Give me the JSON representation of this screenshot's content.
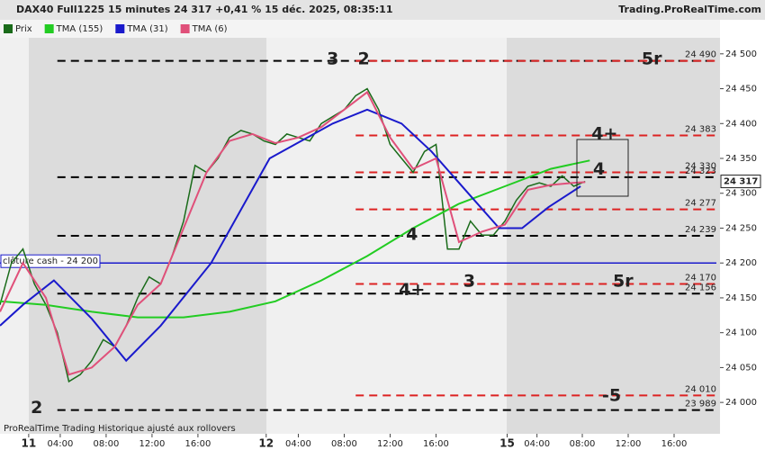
{
  "header": {
    "title": "DAX40 Full1225 15 minutes 24 317 +0,41 % 15 déc. 2025, 08:35:11",
    "source": "Trading.ProRealTime.com",
    "footer": "ProRealTime Trading  Historique ajusté aux rollovers"
  },
  "chart_data": {
    "type": "line",
    "xlim": [
      0,
      62.75
    ],
    "ylim": [
      23955,
      24523
    ],
    "xticks": [
      {
        "value": 2.5,
        "label": "11"
      },
      {
        "value": 5.25,
        "label": "04:00"
      },
      {
        "value": 9.25,
        "label": "08:00"
      },
      {
        "value": 13.25,
        "label": "12:00"
      },
      {
        "value": 17.25,
        "label": "16:00"
      },
      {
        "value": 23.2,
        "label": "12"
      },
      {
        "value": 26,
        "label": "04:00"
      },
      {
        "value": 30,
        "label": "08:00"
      },
      {
        "value": 34,
        "label": "12:00"
      },
      {
        "value": 38,
        "label": "16:00"
      },
      {
        "value": 44.2,
        "label": "15"
      },
      {
        "value": 46.8,
        "label": "04:00"
      },
      {
        "value": 50.75,
        "label": "08:00"
      },
      {
        "value": 54.75,
        "label": "12:00"
      },
      {
        "value": 58.75,
        "label": "16:00"
      }
    ],
    "yticks": [
      {
        "value": 24000,
        "label": "24 000"
      },
      {
        "value": 24050,
        "label": "24 050"
      },
      {
        "value": 24100,
        "label": "24 100"
      },
      {
        "value": 24150,
        "label": "24 150"
      },
      {
        "value": 24200,
        "label": "24 200"
      },
      {
        "value": 24250,
        "label": "24 250"
      },
      {
        "value": 24300,
        "label": "24 300"
      },
      {
        "value": 24350,
        "label": "24 350"
      },
      {
        "value": 24400,
        "label": "24 400"
      },
      {
        "value": 24450,
        "label": "24 450"
      },
      {
        "value": 24500,
        "label": "24 500"
      }
    ],
    "series": [
      {
        "name": "Prix",
        "color": "#1a6b1a",
        "x": [
          0,
          1,
          2,
          3,
          4,
          5,
          6,
          7,
          8,
          9,
          10,
          11,
          12,
          13,
          14,
          15,
          16,
          17,
          18,
          19,
          20,
          21,
          22,
          23,
          24,
          25,
          26,
          27,
          28,
          29,
          30,
          31,
          32,
          33,
          34,
          35,
          36,
          37,
          38,
          39,
          40,
          41,
          42,
          43,
          44,
          45,
          46,
          47,
          48,
          49,
          50,
          51
        ],
        "values": [
          24140,
          24200,
          24220,
          24170,
          24140,
          24100,
          24030,
          24040,
          24060,
          24090,
          24080,
          24110,
          24150,
          24180,
          24170,
          24210,
          24260,
          24340,
          24330,
          24350,
          24380,
          24390,
          24385,
          24375,
          24370,
          24385,
          24380,
          24375,
          24400,
          24410,
          24420,
          24440,
          24450,
          24420,
          24370,
          24350,
          24330,
          24360,
          24370,
          24220,
          24220,
          24260,
          24240,
          24240,
          24260,
          24290,
          24310,
          24315,
          24310,
          24325,
          24310,
          24317
        ]
      },
      {
        "name": "TMA (155)",
        "color": "#22cc22",
        "x": [
          0,
          4,
          8,
          12,
          16,
          20,
          24,
          28,
          32,
          36,
          40,
          44,
          48,
          51.4
        ],
        "values": [
          24145,
          24140,
          24130,
          24122,
          24122,
          24130,
          24145,
          24175,
          24210,
          24250,
          24285,
          24310,
          24335,
          24347
        ]
      },
      {
        "name": "TMA (31)",
        "color": "#1a1acc",
        "x": [
          0,
          2,
          4.7,
          8,
          11,
          14,
          18.4,
          23.5,
          29,
          32,
          35,
          37.6,
          40.8,
          43.5,
          45.5,
          47.8,
          50.6
        ],
        "values": [
          24110,
          24140,
          24175,
          24120,
          24060,
          24110,
          24200,
          24350,
          24400,
          24420,
          24400,
          24360,
          24300,
          24250,
          24250,
          24280,
          24310
        ]
      },
      {
        "name": "TMA (6)",
        "color": "#e0507a",
        "x": [
          0,
          2,
          4,
          6,
          8,
          10,
          12,
          14,
          16,
          18,
          20,
          22,
          24,
          26,
          28,
          30,
          32,
          34,
          36,
          38,
          40,
          42,
          44,
          46,
          48,
          50,
          51
        ],
        "values": [
          24130,
          24200,
          24150,
          24040,
          24050,
          24080,
          24140,
          24170,
          24250,
          24330,
          24375,
          24385,
          24372,
          24380,
          24395,
          24420,
          24445,
          24380,
          24335,
          24350,
          24230,
          24245,
          24255,
          24305,
          24312,
          24315,
          24316
        ]
      }
    ],
    "levels": [
      {
        "value": 24490,
        "color": "#000000",
        "from": 5
      },
      {
        "value": 24490,
        "color": "#dd2222",
        "from": 31,
        "label": "24 490"
      },
      {
        "value": 24383,
        "color": "#dd2222",
        "from": 31,
        "label": "24 383"
      },
      {
        "value": 24330,
        "color": "#dd2222",
        "from": 31,
        "label": "24 330"
      },
      {
        "value": 24323,
        "color": "#000000",
        "from": 5,
        "label": "24 323"
      },
      {
        "value": 24277,
        "color": "#dd2222",
        "from": 31,
        "label": "24 277"
      },
      {
        "value": 24239,
        "color": "#000000",
        "from": 5,
        "label": "24 239"
      },
      {
        "value": 24200,
        "color": "#1a1acc",
        "from": 0,
        "label": "clôture cash -  24 200",
        "solid": true
      },
      {
        "value": 24170,
        "color": "#dd2222",
        "from": 31,
        "label": "24 170"
      },
      {
        "value": 24156,
        "color": "#000000",
        "from": 5,
        "label": "24 156"
      },
      {
        "value": 24010,
        "color": "#dd2222",
        "from": 31,
        "label": "24 010"
      },
      {
        "value": 23989,
        "color": "#000000",
        "from": 5,
        "label": "23 989"
      }
    ],
    "annotations": [
      {
        "text": "3",
        "color": "#111111",
        "x": 29,
        "y": 24492
      },
      {
        "text": "2",
        "color": "#dd3333",
        "x": 31.7,
        "y": 24492
      },
      {
        "text": "5r",
        "color": "#111111",
        "x": 56.8,
        "y": 24492
      },
      {
        "text": "4+",
        "color": "#dd3333",
        "x": 52.7,
        "y": 24385
      },
      {
        "text": "4",
        "color": "#dd3333",
        "x": 52.2,
        "y": 24334
      },
      {
        "text": "4",
        "color": "#111111",
        "x": 35.9,
        "y": 24240
      },
      {
        "text": "4+",
        "color": "#111111",
        "x": 35.9,
        "y": 24161
      },
      {
        "text": "3",
        "color": "#dd3333",
        "x": 40.9,
        "y": 24173
      },
      {
        "text": "5r",
        "color": "#dd3333",
        "x": 54.3,
        "y": 24173
      },
      {
        "text": "-5",
        "color": "#dd3333",
        "x": 53.3,
        "y": 24009
      },
      {
        "text": "2",
        "color": "#111111",
        "x": 3.2,
        "y": 23992
      }
    ],
    "last": {
      "value": 24317,
      "label": "24 317"
    }
  }
}
